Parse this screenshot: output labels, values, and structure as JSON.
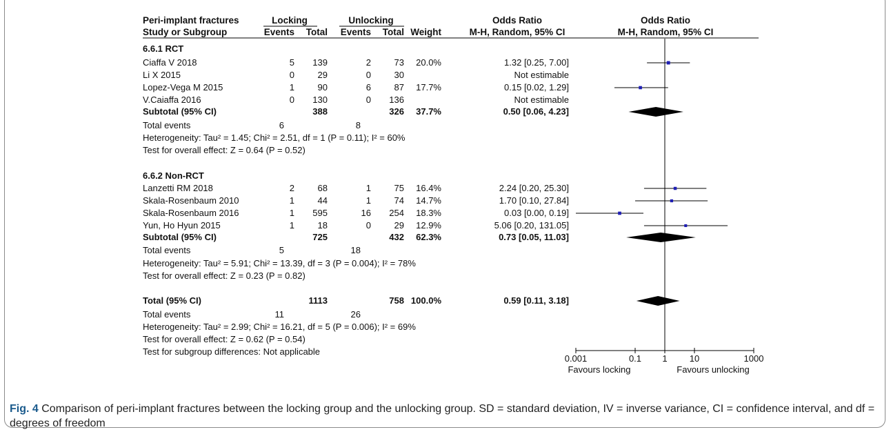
{
  "header": {
    "outcome": "Peri-implant fractures",
    "group1": "Locking",
    "group2": "Unlocking",
    "col_effect_text": "Odds Ratio",
    "col_effect_plot": "Odds Ratio",
    "sub_study": "Study or Subgroup",
    "sub_events1": "Events",
    "sub_total1": "Total",
    "sub_events2": "Events",
    "sub_total2": "Total",
    "sub_weight": "Weight",
    "sub_method_text": "M-H, Random, 95% CI",
    "sub_method_plot": "M-H, Random, 95% CI"
  },
  "subgroups": [
    {
      "title": "6.6.1 RCT",
      "studies": [
        {
          "name": "Ciaffa V 2018",
          "e1": "5",
          "t1": "139",
          "e2": "2",
          "t2": "73",
          "weight": "20.0%",
          "ci_text": "1.32 [0.25, 7.00]"
        },
        {
          "name": "Li X 2015",
          "e1": "0",
          "t1": "29",
          "e2": "0",
          "t2": "30",
          "weight": "",
          "ci_text": "Not estimable"
        },
        {
          "name": "Lopez-Vega M 2015",
          "e1": "1",
          "t1": "90",
          "e2": "6",
          "t2": "87",
          "weight": "17.7%",
          "ci_text": "0.15 [0.02, 1.29]"
        },
        {
          "name": "V.Caiaffa 2016",
          "e1": "0",
          "t1": "130",
          "e2": "0",
          "t2": "136",
          "weight": "",
          "ci_text": "Not estimable"
        }
      ],
      "subtotal": {
        "label": "Subtotal (95% CI)",
        "t1": "388",
        "t2": "326",
        "weight": "37.7%",
        "ci_text": "0.50 [0.06, 4.23]"
      },
      "total_events": {
        "label": "Total events",
        "e1": "6",
        "e2": "8"
      },
      "heterogeneity": "Heterogeneity: Tau² = 1.45; Chi² = 2.51, df = 1 (P = 0.11); I² = 60%",
      "overall": "Test for overall effect: Z = 0.64 (P = 0.52)"
    },
    {
      "title": "6.6.2 Non-RCT",
      "studies": [
        {
          "name": "Lanzetti RM 2018",
          "e1": "2",
          "t1": "68",
          "e2": "1",
          "t2": "75",
          "weight": "16.4%",
          "ci_text": "2.24 [0.20, 25.30]"
        },
        {
          "name": "Skala-Rosenbaum 2010",
          "e1": "1",
          "t1": "44",
          "e2": "1",
          "t2": "74",
          "weight": "14.7%",
          "ci_text": "1.70 [0.10, 27.84]"
        },
        {
          "name": "Skala-Rosenbaum 2016",
          "e1": "1",
          "t1": "595",
          "e2": "16",
          "t2": "254",
          "weight": "18.3%",
          "ci_text": "0.03 [0.00, 0.19]"
        },
        {
          "name": "Yun, Ho Hyun 2015",
          "e1": "1",
          "t1": "18",
          "e2": "0",
          "t2": "29",
          "weight": "12.9%",
          "ci_text": "5.06 [0.20, 131.05]"
        }
      ],
      "subtotal": {
        "label": "Subtotal (95% CI)",
        "t1": "725",
        "t2": "432",
        "weight": "62.3%",
        "ci_text": "0.73 [0.05, 11.03]"
      },
      "total_events": {
        "label": "Total events",
        "e1": "5",
        "e2": "18"
      },
      "heterogeneity": "Heterogeneity: Tau² = 5.91; Chi² = 13.39, df = 3 (P = 0.004); I² = 78%",
      "overall": "Test for overall effect: Z = 0.23 (P = 0.82)"
    }
  ],
  "total": {
    "label": "Total (95% CI)",
    "t1": "1113",
    "t2": "758",
    "weight": "100.0%",
    "ci_text": "0.59 [0.11, 3.18]",
    "total_events": {
      "label": "Total events",
      "e1": "11",
      "e2": "26"
    },
    "heterogeneity": "Heterogeneity: Tau² = 2.99; Chi² = 16.21, df = 5 (P = 0.006); I² = 69%",
    "overall": "Test for overall effect: Z = 0.62 (P = 0.54)",
    "subgroup_diff": "Test for subgroup differences: Not applicable"
  },
  "axis": {
    "ticks": [
      {
        "value": 0.001,
        "label": "0.001"
      },
      {
        "value": 0.1,
        "label": "0.1"
      },
      {
        "value": 1,
        "label": "1"
      },
      {
        "value": 10,
        "label": "10"
      },
      {
        "value": 1000,
        "label": "1000"
      }
    ],
    "favours_left": "Favours locking",
    "favours_right": "Favours unlocking"
  },
  "chart_data": {
    "type": "forest",
    "scale": "log",
    "xlim": [
      0.001,
      1000
    ],
    "reference_line": 1,
    "studies": [
      {
        "name": "Ciaffa V 2018",
        "or": 1.32,
        "lo": 0.25,
        "hi": 7.0,
        "weight": 20.0
      },
      {
        "name": "Li X 2015",
        "or": null,
        "lo": null,
        "hi": null,
        "weight": null
      },
      {
        "name": "Lopez-Vega M 2015",
        "or": 0.15,
        "lo": 0.02,
        "hi": 1.29,
        "weight": 17.7
      },
      {
        "name": "V.Caiaffa 2016",
        "or": null,
        "lo": null,
        "hi": null,
        "weight": null
      },
      {
        "name": "Lanzetti RM 2018",
        "or": 2.24,
        "lo": 0.2,
        "hi": 25.3,
        "weight": 16.4
      },
      {
        "name": "Skala-Rosenbaum 2010",
        "or": 1.7,
        "lo": 0.1,
        "hi": 27.84,
        "weight": 14.7
      },
      {
        "name": "Skala-Rosenbaum 2016",
        "or": 0.03,
        "lo": 0.0,
        "hi": 0.19,
        "weight": 18.3
      },
      {
        "name": "Yun, Ho Hyun 2015",
        "or": 5.06,
        "lo": 0.2,
        "hi": 131.05,
        "weight": 12.9
      }
    ],
    "pooled": [
      {
        "name": "Subtotal 6.6.1 RCT",
        "or": 0.5,
        "lo": 0.06,
        "hi": 4.23
      },
      {
        "name": "Subtotal 6.6.2 Non-RCT",
        "or": 0.73,
        "lo": 0.05,
        "hi": 11.03
      },
      {
        "name": "Total",
        "or": 0.59,
        "lo": 0.11,
        "hi": 3.18
      }
    ],
    "colors": {
      "square": "#1f1fb4",
      "diamond": "#000000"
    }
  },
  "caption": {
    "label": "Fig. 4",
    "text": "Comparison of peri-implant fractures between the locking group and the unlocking group. SD = standard deviation, IV = inverse variance, CI = confidence interval, and df = degrees of freedom"
  }
}
